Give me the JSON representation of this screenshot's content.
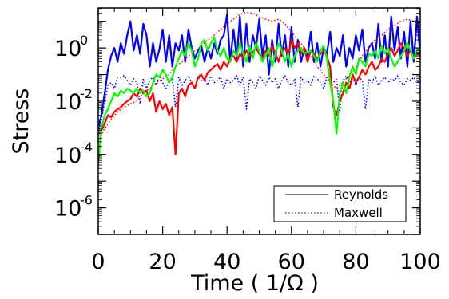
{
  "chart_data": {
    "type": "line",
    "title": "",
    "xlabel": "Time ( 1/Ω )",
    "ylabel": "Stress",
    "xlim": [
      0,
      100
    ],
    "ylim_log10": [
      -7,
      1.5
    ],
    "yscale": "log",
    "grid": false,
    "legend": {
      "placement": "bottom-right",
      "entries": [
        {
          "label": "Reynolds",
          "linestyle": "solid"
        },
        {
          "label": "Maxwell",
          "linestyle": "dotted"
        }
      ]
    },
    "x_ticks": [
      "0",
      "20",
      "40",
      "60",
      "80",
      "100"
    ],
    "y_ticks": [
      {
        "base": "10",
        "exp": "0"
      },
      {
        "base": "10",
        "exp": "-2"
      },
      {
        "base": "10",
        "exp": "-4"
      },
      {
        "base": "10",
        "exp": "-6"
      }
    ],
    "series": [
      {
        "color": "#0000ff",
        "linestyle": "solid",
        "x": [
          0,
          1,
          2,
          3,
          4,
          5,
          6,
          7,
          8,
          9,
          10,
          11,
          12,
          13,
          14,
          15,
          16,
          17,
          18,
          19,
          20,
          21,
          22,
          23,
          24,
          25,
          26,
          27,
          28,
          29,
          30,
          31,
          32,
          33,
          34,
          35,
          36,
          37,
          38,
          39,
          40,
          41,
          42,
          43,
          44,
          45,
          46,
          47,
          48,
          49,
          50,
          51,
          52,
          53,
          54,
          55,
          56,
          57,
          58,
          59,
          60,
          61,
          62,
          63,
          64,
          65,
          66,
          67,
          68,
          69,
          70,
          71,
          72,
          73,
          74,
          75,
          76,
          77,
          78,
          79,
          80,
          81,
          82,
          83,
          84,
          85,
          86,
          87,
          88,
          89,
          90,
          91,
          92,
          93,
          94,
          95,
          96,
          97,
          98,
          99,
          100
        ],
        "y": [
          0.001,
          0.003,
          0.02,
          0.15,
          0.5,
          1.0,
          0.3,
          1.5,
          0.6,
          3.0,
          10.0,
          0.8,
          3.0,
          0.6,
          8.0,
          3.0,
          0.2,
          1.5,
          0.3,
          0.9,
          5.0,
          0.3,
          3.0,
          0.2,
          1.5,
          0.8,
          3.0,
          0.3,
          5.0,
          1.0,
          0.4,
          0.8,
          1.2,
          0.3,
          1.0,
          0.4,
          1.5,
          0.6,
          2.0,
          3.0,
          18.0,
          0.3,
          5.0,
          0.4,
          15.0,
          0.2,
          8.0,
          0.3,
          3.0,
          1.0,
          12.0,
          0.5,
          3.0,
          0.1,
          2.0,
          0.3,
          8.0,
          0.5,
          3.0,
          0.2,
          6.0,
          0.3,
          2.0,
          0.3,
          1.0,
          0.5,
          4.0,
          0.3,
          1.5,
          0.2,
          1.0,
          0.6,
          4.0,
          0.3,
          1.0,
          0.5,
          3.0,
          0.2,
          1.0,
          0.4,
          3.0,
          0.8,
          5.0,
          0.3,
          1.0,
          1.5,
          0.4,
          8.0,
          0.3,
          3.0,
          0.2,
          15.0,
          0.8,
          6.0,
          0.4,
          4.0,
          0.2,
          10.0,
          0.3,
          15.0,
          0.5
        ]
      },
      {
        "color": "#0000ff",
        "linestyle": "dotted",
        "x": [
          0,
          1,
          2,
          3,
          4,
          5,
          6,
          7,
          8,
          9,
          10,
          11,
          12,
          13,
          14,
          15,
          16,
          17,
          18,
          19,
          20,
          21,
          22,
          23,
          24,
          25,
          26,
          27,
          28,
          29,
          30,
          31,
          32,
          33,
          34,
          35,
          36,
          37,
          38,
          39,
          40,
          41,
          42,
          43,
          44,
          45,
          46,
          47,
          48,
          49,
          50,
          51,
          52,
          53,
          54,
          55,
          56,
          57,
          58,
          59,
          60,
          61,
          62,
          63,
          64,
          65,
          66,
          67,
          68,
          69,
          70,
          71,
          72,
          73,
          74,
          75,
          76,
          77,
          78,
          79,
          80,
          81,
          82,
          83,
          84,
          85,
          86,
          87,
          88,
          89,
          90,
          91,
          92,
          93,
          94,
          95,
          96,
          97,
          98,
          99,
          100
        ],
        "y": [
          0.0005,
          0.002,
          0.01,
          0.04,
          0.05,
          0.03,
          0.08,
          0.08,
          0.09,
          0.06,
          0.04,
          0.07,
          0.05,
          0.008,
          0.07,
          0.03,
          0.06,
          0.08,
          0.04,
          0.09,
          0.05,
          0.03,
          0.06,
          0.07,
          0.006,
          0.08,
          0.04,
          0.06,
          0.09,
          0.05,
          0.03,
          0.08,
          0.06,
          0.07,
          0.04,
          0.09,
          0.05,
          0.06,
          0.08,
          0.03,
          0.07,
          0.05,
          0.06,
          0.09,
          0.04,
          0.08,
          0.005,
          0.07,
          0.05,
          0.03,
          0.09,
          0.06,
          0.04,
          0.08,
          0.05,
          0.07,
          0.03,
          0.06,
          0.09,
          0.05,
          0.04,
          0.07,
          0.006,
          0.08,
          0.05,
          0.06,
          0.04,
          0.09,
          0.07,
          0.05,
          0.03,
          0.08,
          0.06,
          0.05,
          0.07,
          0.004,
          0.06,
          0.09,
          0.05,
          0.07,
          0.04,
          0.08,
          0.06,
          0.005,
          0.07,
          0.05,
          0.09,
          0.04,
          0.06,
          0.08,
          0.05,
          0.07,
          0.06,
          0.09,
          0.05,
          0.04,
          0.07,
          0.06,
          0.08,
          0.05,
          0.07
        ]
      },
      {
        "color": "#ff0000",
        "linestyle": "solid",
        "x": [
          0,
          1,
          2,
          3,
          4,
          5,
          6,
          7,
          8,
          9,
          10,
          11,
          12,
          13,
          14,
          15,
          16,
          17,
          18,
          19,
          20,
          21,
          22,
          23,
          24,
          25,
          26,
          27,
          28,
          29,
          30,
          31,
          32,
          33,
          34,
          35,
          36,
          37,
          38,
          39,
          40,
          41,
          42,
          43,
          44,
          45,
          46,
          47,
          48,
          49,
          50,
          51,
          52,
          53,
          54,
          55,
          56,
          57,
          58,
          59,
          60,
          61,
          62,
          63,
          64,
          65,
          66,
          67,
          68,
          69,
          70,
          71,
          72,
          73,
          74,
          75,
          76,
          77,
          78,
          79,
          80,
          81,
          82,
          83,
          84,
          85,
          86,
          87,
          88,
          89,
          90,
          91,
          92,
          93,
          94,
          95,
          96,
          97,
          98,
          99,
          100
        ],
        "y": [
          0.0006,
          0.0008,
          0.0015,
          0.003,
          0.0025,
          0.004,
          0.005,
          0.006,
          0.008,
          0.01,
          0.012,
          0.02,
          0.015,
          0.03,
          0.02,
          0.025,
          0.01,
          0.02,
          0.004,
          0.01,
          0.005,
          0.008,
          0.003,
          0.006,
          0.0001,
          0.02,
          0.03,
          0.015,
          0.04,
          0.05,
          0.03,
          0.08,
          0.1,
          0.06,
          0.12,
          0.15,
          0.2,
          0.25,
          0.15,
          0.3,
          0.2,
          0.4,
          0.5,
          0.3,
          0.6,
          0.4,
          0.8,
          0.5,
          0.7,
          1.0,
          0.6,
          0.4,
          0.8,
          0.5,
          1.2,
          0.6,
          0.3,
          0.8,
          1.0,
          0.5,
          2.0,
          1.0,
          1.5,
          0.6,
          1.0,
          0.3,
          0.8,
          0.6,
          0.4,
          0.6,
          0.8,
          0.5,
          0.2,
          0.006,
          0.003,
          0.01,
          0.02,
          0.05,
          0.03,
          0.1,
          0.05,
          0.08,
          0.15,
          0.1,
          0.2,
          0.3,
          0.15,
          0.2,
          0.4,
          0.3,
          0.6,
          1.0,
          0.5,
          0.8,
          1.5,
          1.0,
          0.5,
          0.8,
          0.4,
          0.6,
          0.5
        ]
      },
      {
        "color": "#ff0000",
        "linestyle": "dotted",
        "x": [
          0,
          2,
          4,
          6,
          8,
          10,
          12,
          14,
          16,
          18,
          20,
          22,
          24,
          26,
          28,
          30,
          32,
          34,
          36,
          38,
          40,
          42,
          44,
          46,
          48,
          50,
          52,
          54,
          56,
          58,
          60,
          62,
          64,
          66,
          68,
          70,
          72,
          74,
          76,
          78,
          80,
          82,
          84,
          86,
          88,
          90,
          92,
          94,
          96,
          98,
          100
        ],
        "y": [
          0.0003,
          0.001,
          0.002,
          0.004,
          0.006,
          0.008,
          0.01,
          0.02,
          0.03,
          0.05,
          0.07,
          0.1,
          0.2,
          0.3,
          0.5,
          0.8,
          1.2,
          2.0,
          3.0,
          5.0,
          8.0,
          12.0,
          18.0,
          22.0,
          20.0,
          15.0,
          12.0,
          10.0,
          12.0,
          8.0,
          4.0,
          2.0,
          1.0,
          0.5,
          0.2,
          0.1,
          0.05,
          0.03,
          0.05,
          0.1,
          0.2,
          0.5,
          1.0,
          2.0,
          3.0,
          5.0,
          7.0,
          10.0,
          12.0,
          10.0,
          8.0
        ]
      },
      {
        "color": "#00ff00",
        "linestyle": "solid",
        "x": [
          0,
          1,
          2,
          3,
          4,
          5,
          6,
          7,
          8,
          9,
          10,
          11,
          12,
          13,
          14,
          15,
          16,
          17,
          18,
          19,
          20,
          21,
          22,
          23,
          24,
          25,
          26,
          27,
          28,
          29,
          30,
          31,
          32,
          33,
          34,
          35,
          36,
          37,
          38,
          39,
          40,
          41,
          42,
          43,
          44,
          45,
          46,
          47,
          48,
          49,
          50,
          51,
          52,
          53,
          54,
          55,
          56,
          57,
          58,
          59,
          60,
          61,
          62,
          63,
          64,
          65,
          66,
          67,
          68,
          69,
          70,
          71,
          72,
          73,
          74,
          75,
          76,
          77,
          78,
          79,
          80,
          81,
          82,
          83,
          84,
          85,
          86,
          87,
          88,
          89,
          90,
          91,
          92,
          93,
          94,
          95,
          96,
          97,
          98,
          99,
          100
        ],
        "y": [
          4e-05,
          0.001,
          0.003,
          0.005,
          0.01,
          0.02,
          0.015,
          0.025,
          0.02,
          0.03,
          0.025,
          0.02,
          0.03,
          0.02,
          0.025,
          0.015,
          0.02,
          0.05,
          0.1,
          0.08,
          0.15,
          0.1,
          0.05,
          0.08,
          0.2,
          0.4,
          0.8,
          0.5,
          1.5,
          0.8,
          0.2,
          0.4,
          1.5,
          2.0,
          0.8,
          1.5,
          2.5,
          0.8,
          0.5,
          1.0,
          0.4,
          0.3,
          0.8,
          0.5,
          1.5,
          0.6,
          0.3,
          1.2,
          0.4,
          1.5,
          0.8,
          0.3,
          0.5,
          1.0,
          0.2,
          0.6,
          1.5,
          0.8,
          0.3,
          0.6,
          0.2,
          0.5,
          0.8,
          1.0,
          0.6,
          0.7,
          0.8,
          0.5,
          0.3,
          0.8,
          1.2,
          0.4,
          0.05,
          0.01,
          0.0006,
          0.02,
          0.05,
          0.02,
          0.08,
          0.2,
          0.1,
          0.4,
          0.3,
          0.2,
          0.6,
          0.5,
          0.8,
          0.4,
          1.2,
          0.6,
          1.0,
          0.4,
          0.2,
          0.3,
          0.5,
          0.8,
          1.5,
          0.8,
          0.4,
          0.8,
          1.0
        ]
      }
    ]
  }
}
